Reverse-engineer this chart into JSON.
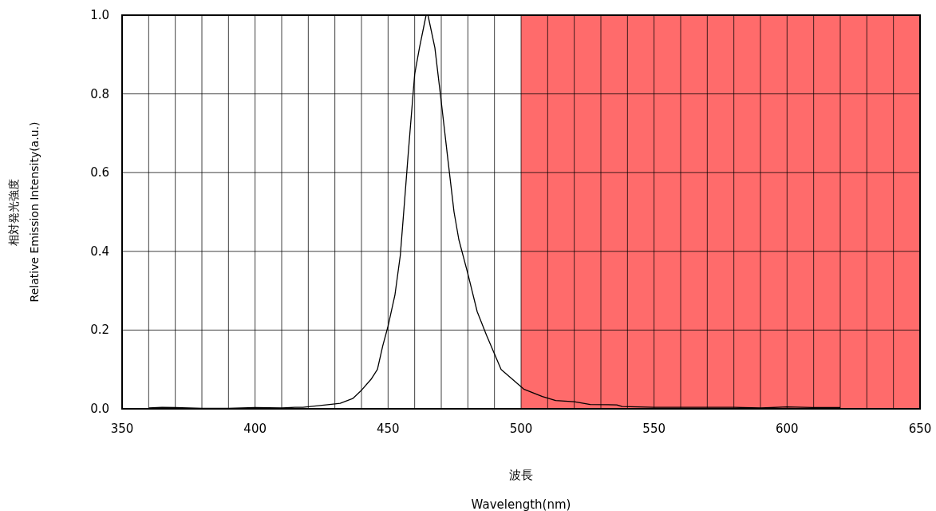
{
  "chart_data": {
    "type": "line",
    "xlabel": "波長\nWavelength(nm)",
    "ylabel": "相対発光強度\nRelative Emission Intensity(a.u.)",
    "series": [
      {
        "color": "#000000",
        "x": [
          360,
          365,
          370,
          375,
          380,
          390,
          400,
          410,
          415,
          418,
          428,
          432,
          436.7,
          439.7,
          443.6,
          446,
          448,
          450,
          452.6,
          454.6,
          456,
          457.6,
          460,
          461.8,
          464.3,
          465,
          467.6,
          470,
          472.6,
          474.8,
          476.6,
          480,
          483.5,
          487,
          492.5,
          501,
          508,
          513,
          520,
          526,
          536,
          538,
          550,
          560,
          570,
          580,
          590,
          600,
          610,
          620
        ],
        "values": [
          0.002,
          0.004,
          0.003,
          0.002,
          0.001,
          0.001,
          0.003,
          0.002,
          0.004,
          0.004,
          0.011,
          0.014,
          0.026,
          0.045,
          0.075,
          0.1,
          0.16,
          0.21,
          0.29,
          0.39,
          0.51,
          0.65,
          0.85,
          0.917,
          1.0,
          1.0,
          0.917,
          0.78,
          0.627,
          0.5,
          0.43,
          0.343,
          0.247,
          0.187,
          0.1,
          0.05,
          0.031,
          0.021,
          0.018,
          0.011,
          0.01,
          0.006,
          0.004,
          0.004,
          0.004,
          0.004,
          0.002,
          0.005,
          0.003,
          0.003
        ]
      }
    ],
    "xlim": [
      350,
      650
    ],
    "ylim": [
      0,
      1
    ],
    "xticks": [
      350,
      {
        "value": 360,
        "label": null
      },
      {
        "value": 370,
        "label": null
      },
      {
        "value": 380,
        "label": null
      },
      {
        "value": 390,
        "label": null
      },
      400,
      {
        "value": 410,
        "label": null
      },
      {
        "value": 420,
        "label": null
      },
      {
        "value": 430,
        "label": null
      },
      {
        "value": 440,
        "label": null
      },
      450,
      {
        "value": 460,
        "label": null
      },
      {
        "value": 470,
        "label": null
      },
      {
        "value": 480,
        "label": null
      },
      {
        "value": 490,
        "label": null
      },
      500,
      {
        "value": 510,
        "label": null
      },
      {
        "value": 520,
        "label": null
      },
      {
        "value": 530,
        "label": null
      },
      {
        "value": 540,
        "label": null
      },
      550,
      {
        "value": 560,
        "label": null
      },
      {
        "value": 570,
        "label": null
      },
      {
        "value": 580,
        "label": null
      },
      {
        "value": 590,
        "label": null
      },
      600,
      {
        "value": 610,
        "label": null
      },
      {
        "value": 620,
        "label": null
      },
      {
        "value": 630,
        "label": null
      },
      {
        "value": 640,
        "label": null
      },
      650
    ],
    "yticks": [
      {
        "value": 0,
        "label": "0.0"
      },
      {
        "value": 0.2,
        "label": "0.2"
      },
      {
        "value": 0.4,
        "label": "0.4"
      },
      {
        "value": 0.6,
        "label": "0.6"
      },
      {
        "value": 0.8,
        "label": "0.8"
      },
      {
        "value": 1,
        "label": "1.0"
      }
    ],
    "grid": true,
    "marker": "none",
    "bands": [
      {
        "axis": "x",
        "from": 500,
        "to": 650,
        "color": "#ff6b6b"
      }
    ]
  }
}
